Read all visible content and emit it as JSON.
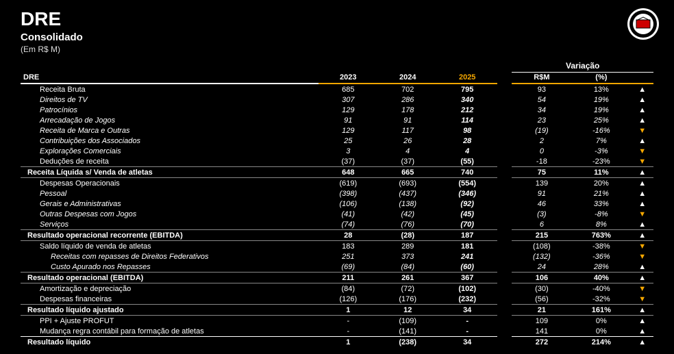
{
  "header": {
    "title": "DRE",
    "subtitle": "Consolidado",
    "units": "(Em R$ M)"
  },
  "columns": {
    "label": "DRE",
    "y2023": "2023",
    "y2024": "2024",
    "y2025": "2025",
    "var_group": "Variação",
    "var_abs": "R$M",
    "var_pct": "(%)"
  },
  "rows": [
    {
      "label": "Receita Bruta",
      "y2023": "685",
      "y2024": "702",
      "y2025": "795",
      "var": "93",
      "pct": "13%",
      "dir": "up",
      "style": "normal",
      "border": "none"
    },
    {
      "label": "Direitos de TV",
      "y2023": "307",
      "y2024": "286",
      "y2025": "340",
      "var": "54",
      "pct": "19%",
      "dir": "up",
      "style": "sub",
      "border": "none"
    },
    {
      "label": "Patrocínios",
      "y2023": "129",
      "y2024": "178",
      "y2025": "212",
      "var": "34",
      "pct": "19%",
      "dir": "up",
      "style": "sub",
      "border": "none"
    },
    {
      "label": "Arrecadação de Jogos",
      "y2023": "91",
      "y2024": "91",
      "y2025": "114",
      "var": "23",
      "pct": "25%",
      "dir": "up",
      "style": "sub",
      "border": "none"
    },
    {
      "label": "Receita de Marca e Outras",
      "y2023": "129",
      "y2024": "117",
      "y2025": "98",
      "var": "(19)",
      "pct": "-16%",
      "dir": "down",
      "style": "sub",
      "border": "none"
    },
    {
      "label": "Contribuições dos Associados",
      "y2023": "25",
      "y2024": "26",
      "y2025": "28",
      "var": "2",
      "pct": "7%",
      "dir": "up",
      "style": "sub",
      "border": "none"
    },
    {
      "label": "Explorações Comerciais",
      "y2023": "3",
      "y2024": "4",
      "y2025": "4",
      "var": "0",
      "pct": "-3%",
      "dir": "down",
      "style": "sub",
      "border": "none"
    },
    {
      "label": "Deduções de receita",
      "y2023": "(37)",
      "y2024": "(37)",
      "y2025": "(55)",
      "var": "-18",
      "pct": "-23%",
      "dir": "down",
      "style": "normal",
      "border": "none"
    },
    {
      "label": "Receita Líquida s/ Venda de atletas",
      "y2023": "648",
      "y2024": "665",
      "y2025": "740",
      "var": "75",
      "pct": "11%",
      "dir": "up",
      "style": "bold",
      "border": "top"
    },
    {
      "label": "Despesas Operacionais",
      "y2023": "(619)",
      "y2024": "(693)",
      "y2025": "(554)",
      "var": "139",
      "pct": "20%",
      "dir": "up",
      "style": "normal",
      "border": "top"
    },
    {
      "label": "Pessoal",
      "y2023": "(398)",
      "y2024": "(437)",
      "y2025": "(346)",
      "var": "91",
      "pct": "21%",
      "dir": "up",
      "style": "sub",
      "border": "none"
    },
    {
      "label": "Gerais e Administrativas",
      "y2023": "(106)",
      "y2024": "(138)",
      "y2025": "(92)",
      "var": "46",
      "pct": "33%",
      "dir": "up",
      "style": "sub",
      "border": "none"
    },
    {
      "label": "Outras Despesas com Jogos",
      "y2023": "(41)",
      "y2024": "(42)",
      "y2025": "(45)",
      "var": "(3)",
      "pct": "-8%",
      "dir": "down",
      "style": "sub",
      "border": "none"
    },
    {
      "label": "Serviços",
      "y2023": "(74)",
      "y2024": "(76)",
      "y2025": "(70)",
      "var": "6",
      "pct": "8%",
      "dir": "up",
      "style": "sub",
      "border": "none"
    },
    {
      "label": "Resultado operacional recorrente (EBITDA)",
      "y2023": "28",
      "y2024": "(28)",
      "y2025": "187",
      "var": "215",
      "pct": "763%",
      "dir": "up",
      "style": "bold",
      "border": "top"
    },
    {
      "label": "Saldo líquido de venda de atletas",
      "y2023": "183",
      "y2024": "289",
      "y2025": "181",
      "var": "(108)",
      "pct": "-38%",
      "dir": "down",
      "style": "normal",
      "border": "top"
    },
    {
      "label": "Receitas com repasses de Direitos Federativos",
      "y2023": "251",
      "y2024": "373",
      "y2025": "241",
      "var": "(132)",
      "pct": "-36%",
      "dir": "down",
      "style": "sub2",
      "border": "none"
    },
    {
      "label": "Custo Apurado nos Repasses",
      "y2023": "(69)",
      "y2024": "(84)",
      "y2025": "(60)",
      "var": "24",
      "pct": "28%",
      "dir": "up",
      "style": "sub2",
      "border": "none"
    },
    {
      "label": "Resultado operacional (EBITDA)",
      "y2023": "211",
      "y2024": "261",
      "y2025": "367",
      "var": "106",
      "pct": "40%",
      "dir": "up",
      "style": "bold",
      "border": "top"
    },
    {
      "label": "Amortização e depreciação",
      "y2023": "(84)",
      "y2024": "(72)",
      "y2025": "(102)",
      "var": "(30)",
      "pct": "-40%",
      "dir": "down",
      "style": "normal",
      "border": "top"
    },
    {
      "label": "Despesas financeiras",
      "y2023": "(126)",
      "y2024": "(176)",
      "y2025": "(232)",
      "var": "(56)",
      "pct": "-32%",
      "dir": "down",
      "style": "normal",
      "border": "none"
    },
    {
      "label": "Resultado líquido ajustado",
      "y2023": "1",
      "y2024": "12",
      "y2025": "34",
      "var": "21",
      "pct": "161%",
      "dir": "up",
      "style": "bold",
      "border": "top"
    },
    {
      "label": "PPI + Ajuste PROFUT",
      "y2023": "-",
      "y2024": "(109)",
      "y2025": "-",
      "var": "109",
      "pct": "0%",
      "dir": "up",
      "style": "normal",
      "border": "top"
    },
    {
      "label": "Mudança regra contábil para formação de atletas",
      "y2023": "-",
      "y2024": "(141)",
      "y2025": "-",
      "var": "141",
      "pct": "0%",
      "dir": "up",
      "style": "normal",
      "border": "none"
    },
    {
      "label": "Resultado líquido",
      "y2023": "1",
      "y2024": "(238)",
      "y2025": "34",
      "var": "272",
      "pct": "214%",
      "dir": "up",
      "style": "bold",
      "border": "strong"
    }
  ],
  "arrows": {
    "up": "▲",
    "down": "▼"
  },
  "colors": {
    "accent": "#f5a700",
    "bg": "#000000",
    "text": "#ffffff"
  }
}
